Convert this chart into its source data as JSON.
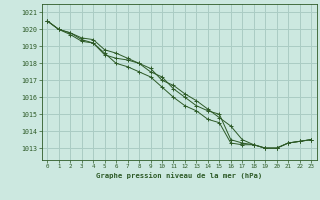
{
  "title": "Graphe pression niveau de la mer (hPa)",
  "background_color": "#cce8e0",
  "grid_color": "#aaccc4",
  "line_color": "#2d5a27",
  "xlim": [
    -0.5,
    23.5
  ],
  "ylim": [
    1012.3,
    1021.5
  ],
  "yticks": [
    1013,
    1014,
    1015,
    1016,
    1017,
    1018,
    1019,
    1020,
    1021
  ],
  "xticks": [
    0,
    1,
    2,
    3,
    4,
    5,
    6,
    7,
    8,
    9,
    10,
    11,
    12,
    13,
    14,
    15,
    16,
    17,
    18,
    19,
    20,
    21,
    22,
    23
  ],
  "series": [
    [
      1020.5,
      1020.0,
      1019.8,
      1019.4,
      1019.2,
      1018.5,
      1018.3,
      1018.2,
      1018.0,
      1017.5,
      1017.2,
      1016.5,
      1016.0,
      1015.5,
      1015.2,
      1015.0,
      1013.5,
      1013.3,
      1013.2,
      1013.0,
      1013.0,
      1013.3,
      1013.4,
      1013.5
    ],
    [
      1020.5,
      1020.0,
      1019.7,
      1019.3,
      1019.2,
      1018.6,
      1018.0,
      1017.8,
      1017.5,
      1017.2,
      1016.6,
      1016.0,
      1015.5,
      1015.2,
      1014.7,
      1014.5,
      1013.3,
      1013.2,
      1013.2,
      1013.0,
      1013.0,
      1013.3,
      1013.4,
      1013.5
    ],
    [
      1020.5,
      1020.0,
      1019.8,
      1019.5,
      1019.4,
      1018.8,
      1018.6,
      1018.3,
      1018.0,
      1017.7,
      1017.0,
      1016.7,
      1016.2,
      1015.8,
      1015.3,
      1014.8,
      1014.3,
      1013.5,
      1013.2,
      1013.0,
      1013.0,
      1013.3,
      1013.4,
      1013.5
    ]
  ]
}
